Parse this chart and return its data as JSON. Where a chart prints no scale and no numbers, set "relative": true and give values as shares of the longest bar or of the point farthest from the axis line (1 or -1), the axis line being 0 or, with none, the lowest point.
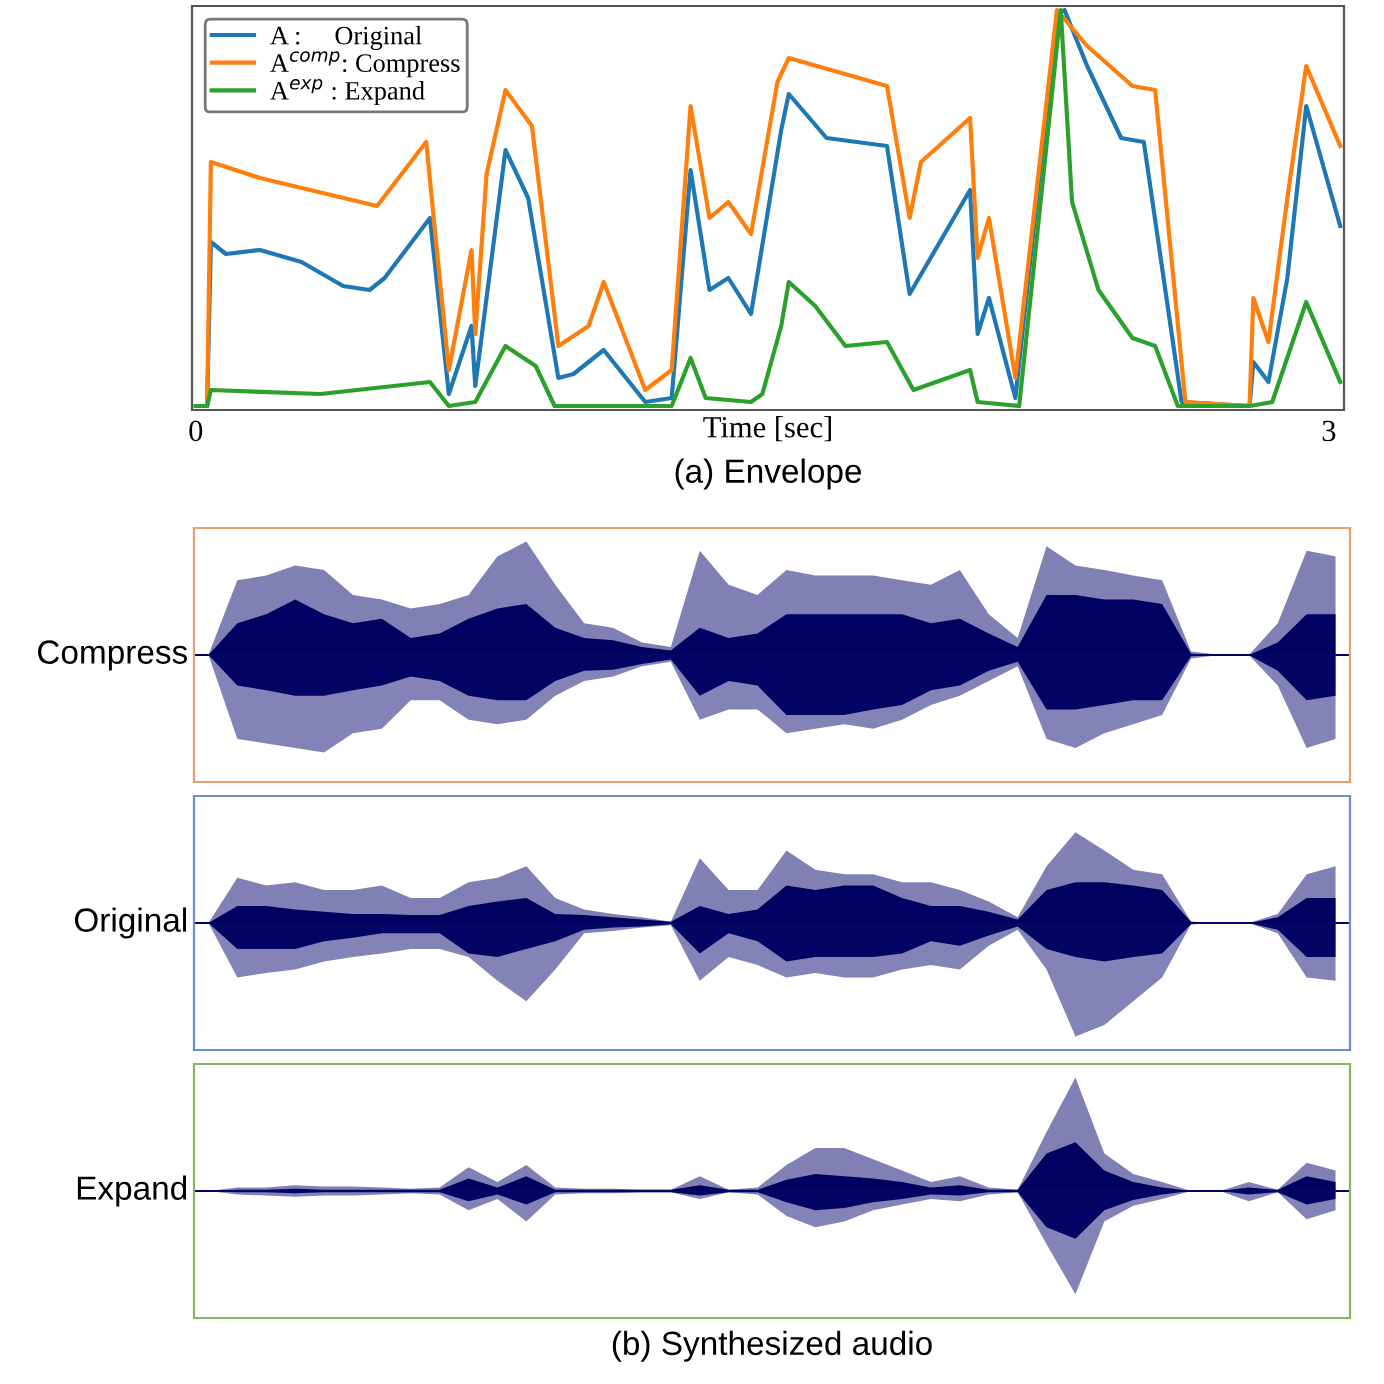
{
  "chart_data": [
    {
      "type": "line",
      "relative": true,
      "xlabel": "Time [sec]",
      "xlim": [
        -0.01,
        3.04
      ],
      "xticks": [
        0,
        3
      ],
      "tick_labels": "x",
      "legend": "top left",
      "grid": false,
      "annotations": [
        "(a) Envelope"
      ],
      "series": [
        {
          "name": "A :     Original",
          "color": "#1f77b4",
          "x": [
            0,
            0.03,
            0.04,
            0.08,
            0.17,
            0.28,
            0.39,
            0.46,
            0.5,
            0.62,
            0.67,
            0.73,
            0.74,
            0.82,
            0.88,
            0.96,
            1.0,
            1.08,
            1.19,
            1.26,
            1.31,
            1.36,
            1.41,
            1.47,
            1.55,
            1.57,
            1.67,
            1.83,
            1.89,
            2.05,
            2.07,
            2.1,
            2.17,
            2.28,
            2.3,
            2.36,
            2.45,
            2.51,
            2.61,
            2.79,
            2.8,
            2.84,
            2.89,
            2.94,
            3.03
          ],
          "values": [
            0.01,
            0.01,
            0.42,
            0.39,
            0.4,
            0.37,
            0.31,
            0.3,
            0.33,
            0.48,
            0.04,
            0.21,
            0.06,
            0.65,
            0.53,
            0.08,
            0.09,
            0.15,
            0.02,
            0.03,
            0.6,
            0.3,
            0.33,
            0.24,
            0.7,
            0.79,
            0.68,
            0.66,
            0.29,
            0.55,
            0.19,
            0.28,
            0.03,
            0.99,
            1.0,
            0.86,
            0.68,
            0.67,
            0.02,
            0.01,
            0.12,
            0.07,
            0.33,
            0.76,
            0.46
          ]
        },
        {
          "name": "A$^{comp}$: Compress",
          "color": "#ff7f0e",
          "x": [
            0,
            0.03,
            0.04,
            0.17,
            0.48,
            0.61,
            0.67,
            0.73,
            0.74,
            0.77,
            0.82,
            0.89,
            0.96,
            1.04,
            1.08,
            1.19,
            1.26,
            1.31,
            1.36,
            1.41,
            1.47,
            1.54,
            1.57,
            1.83,
            1.89,
            1.92,
            2.05,
            2.07,
            2.1,
            2.17,
            2.28,
            2.36,
            2.48,
            2.54,
            2.62,
            2.79,
            2.8,
            2.84,
            2.89,
            2.94,
            3.03
          ],
          "values": [
            0.01,
            0.01,
            0.62,
            0.58,
            0.51,
            0.67,
            0.1,
            0.4,
            0.19,
            0.59,
            0.8,
            0.71,
            0.16,
            0.21,
            0.32,
            0.05,
            0.1,
            0.76,
            0.48,
            0.52,
            0.44,
            0.82,
            0.88,
            0.81,
            0.48,
            0.62,
            0.73,
            0.38,
            0.48,
            0.08,
            1.0,
            0.91,
            0.81,
            0.8,
            0.02,
            0.01,
            0.28,
            0.17,
            0.53,
            0.86,
            0.66
          ]
        },
        {
          "name": "A$^{exp}$ : Expand",
          "color": "#2ca02c",
          "x": [
            0,
            0.03,
            0.04,
            0.33,
            0.62,
            0.67,
            0.74,
            0.82,
            0.9,
            0.95,
            1.26,
            1.31,
            1.35,
            1.47,
            1.5,
            1.55,
            1.57,
            1.64,
            1.72,
            1.83,
            1.9,
            2.05,
            2.07,
            2.18,
            2.29,
            2.32,
            2.39,
            2.48,
            2.54,
            2.6,
            2.79,
            2.85,
            2.94,
            3.03
          ],
          "values": [
            0.01,
            0.01,
            0.05,
            0.04,
            0.07,
            0.01,
            0.02,
            0.16,
            0.11,
            0.01,
            0.01,
            0.13,
            0.03,
            0.02,
            0.04,
            0.21,
            0.32,
            0.26,
            0.16,
            0.17,
            0.05,
            0.1,
            0.02,
            0.01,
            1.0,
            0.52,
            0.3,
            0.18,
            0.16,
            0.01,
            0.01,
            0.02,
            0.27,
            0.07
          ]
        }
      ]
    },
    {
      "type": "area",
      "relative": true,
      "ylabel": "Compress",
      "tick_labels": false,
      "ref_lines": [
        {
          "axis": "y",
          "value": 0,
          "color": "#040464"
        }
      ],
      "categories": [
        null,
        null,
        null,
        null,
        null,
        null,
        null,
        null,
        null,
        null,
        null,
        null,
        null,
        null,
        null,
        null,
        null,
        null,
        null,
        null,
        null,
        null,
        null,
        null,
        null,
        null,
        null,
        null,
        null,
        null,
        null,
        null,
        null,
        null,
        null,
        null,
        null,
        null,
        null,
        null
      ],
      "series": [
        {
          "color": "#8080b4",
          "values": [
            0,
            0.66,
            0.7,
            0.79,
            0.75,
            0.53,
            0.49,
            0.41,
            0.45,
            0.53,
            0.87,
            1.0,
            0.62,
            0.28,
            0.24,
            0.11,
            0.07,
            0.92,
            0.62,
            0.53,
            0.75,
            0.7,
            0.7,
            0.7,
            0.66,
            0.62,
            0.75,
            0.36,
            0.15,
            0.96,
            0.79,
            0.75,
            0.7,
            0.66,
            0.03,
            0,
            0,
            0.28,
            0.92,
            0.87
          ]
        },
        {
          "color": "#8383b7",
          "values": [
            0,
            -0.74,
            -0.78,
            -0.82,
            -0.86,
            -0.69,
            -0.65,
            -0.4,
            -0.4,
            -0.57,
            -0.61,
            -0.57,
            -0.36,
            -0.23,
            -0.19,
            -0.1,
            -0.06,
            -0.57,
            -0.48,
            -0.48,
            -0.69,
            -0.65,
            -0.61,
            -0.65,
            -0.57,
            -0.44,
            -0.36,
            -0.23,
            -0.1,
            -0.74,
            -0.82,
            -0.69,
            -0.61,
            -0.53,
            -0.03,
            0,
            0,
            -0.27,
            -0.82,
            -0.74
          ]
        },
        {
          "color": "#000060",
          "values": [
            0,
            0.28,
            0.36,
            0.49,
            0.36,
            0.28,
            0.32,
            0.15,
            0.19,
            0.32,
            0.41,
            0.45,
            0.24,
            0.15,
            0.13,
            0.07,
            0.04,
            0.24,
            0.15,
            0.19,
            0.36,
            0.36,
            0.36,
            0.36,
            0.36,
            0.28,
            0.32,
            0.19,
            0.07,
            0.53,
            0.53,
            0.49,
            0.49,
            0.45,
            0.01,
            0,
            0,
            0.11,
            0.36,
            0.36
          ]
        },
        {
          "color": "#040464",
          "values": [
            0,
            -0.27,
            -0.31,
            -0.36,
            -0.36,
            -0.31,
            -0.27,
            -0.19,
            -0.23,
            -0.36,
            -0.4,
            -0.4,
            -0.23,
            -0.14,
            -0.13,
            -0.08,
            -0.04,
            -0.36,
            -0.23,
            -0.27,
            -0.53,
            -0.53,
            -0.53,
            -0.48,
            -0.44,
            -0.31,
            -0.27,
            -0.14,
            -0.06,
            -0.48,
            -0.48,
            -0.44,
            -0.4,
            -0.4,
            -0.01,
            0,
            0,
            -0.14,
            -0.4,
            -0.36
          ]
        }
      ]
    },
    {
      "type": "area",
      "relative": true,
      "ylabel": "Original",
      "tick_labels": false,
      "ref_lines": [
        {
          "axis": "y",
          "value": 0,
          "color": "#040464"
        }
      ],
      "categories": [
        null,
        null,
        null,
        null,
        null,
        null,
        null,
        null,
        null,
        null,
        null,
        null,
        null,
        null,
        null,
        null,
        null,
        null,
        null,
        null,
        null,
        null,
        null,
        null,
        null,
        null,
        null,
        null,
        null,
        null,
        null,
        null,
        null,
        null,
        null,
        null,
        null,
        null,
        null,
        null
      ],
      "series": [
        {
          "color": "#8080b4",
          "values": [
            0,
            0.4,
            0.33,
            0.36,
            0.29,
            0.29,
            0.33,
            0.22,
            0.22,
            0.36,
            0.4,
            0.5,
            0.22,
            0.12,
            0.08,
            0.05,
            0.01,
            0.57,
            0.29,
            0.29,
            0.64,
            0.47,
            0.43,
            0.43,
            0.36,
            0.36,
            0.29,
            0.19,
            0.05,
            0.5,
            0.8,
            0.64,
            0.47,
            0.43,
            0.01,
            0,
            0,
            0.08,
            0.43,
            0.5
          ]
        },
        {
          "color": "#8383b7",
          "values": [
            0,
            -0.48,
            -0.44,
            -0.41,
            -0.34,
            -0.3,
            -0.27,
            -0.23,
            -0.23,
            -0.3,
            -0.51,
            -0.69,
            -0.41,
            -0.09,
            -0.07,
            -0.04,
            -0.02,
            -0.51,
            -0.3,
            -0.37,
            -0.48,
            -0.44,
            -0.48,
            -0.48,
            -0.41,
            -0.37,
            -0.41,
            -0.2,
            -0.06,
            -0.41,
            -1.0,
            -0.9,
            -0.69,
            -0.48,
            -0.01,
            0,
            0,
            -0.09,
            -0.48,
            -0.51
          ]
        },
        {
          "color": "#000060",
          "values": [
            0,
            0.15,
            0.15,
            0.12,
            0.1,
            0.08,
            0.08,
            0.07,
            0.07,
            0.15,
            0.19,
            0.22,
            0.08,
            0.07,
            0.05,
            0.03,
            0.01,
            0.15,
            0.08,
            0.12,
            0.33,
            0.29,
            0.33,
            0.33,
            0.22,
            0.15,
            0.15,
            0.1,
            0.03,
            0.29,
            0.36,
            0.36,
            0.33,
            0.29,
            0.01,
            0,
            0,
            0.05,
            0.22,
            0.22
          ]
        },
        {
          "color": "#040464",
          "values": [
            0,
            -0.23,
            -0.23,
            -0.23,
            -0.16,
            -0.13,
            -0.09,
            -0.09,
            -0.09,
            -0.27,
            -0.3,
            -0.23,
            -0.16,
            -0.06,
            -0.04,
            -0.03,
            -0.01,
            -0.27,
            -0.09,
            -0.16,
            -0.34,
            -0.3,
            -0.3,
            -0.3,
            -0.27,
            -0.16,
            -0.2,
            -0.11,
            -0.03,
            -0.23,
            -0.3,
            -0.34,
            -0.3,
            -0.27,
            -0.01,
            0,
            0,
            -0.06,
            -0.3,
            -0.3
          ]
        }
      ]
    },
    {
      "type": "area",
      "relative": true,
      "ylabel": "Expand",
      "tick_labels": false,
      "ref_lines": [
        {
          "axis": "y",
          "value": 0,
          "color": "#040464"
        }
      ],
      "annotations": [
        "(b) Synthesized audio"
      ],
      "categories": [
        null,
        null,
        null,
        null,
        null,
        null,
        null,
        null,
        null,
        null,
        null,
        null,
        null,
        null,
        null,
        null,
        null,
        null,
        null,
        null,
        null,
        null,
        null,
        null,
        null,
        null,
        null,
        null,
        null,
        null,
        null,
        null,
        null,
        null,
        null,
        null,
        null,
        null,
        null,
        null
      ],
      "series": [
        {
          "color": "#8080b4",
          "values": [
            0,
            0.03,
            0.03,
            0.05,
            0.04,
            0.04,
            0.03,
            0.02,
            0.03,
            0.21,
            0.08,
            0.23,
            0.03,
            0.02,
            0.02,
            0.01,
            0.01,
            0.13,
            0.01,
            0.03,
            0.23,
            0.38,
            0.38,
            0.28,
            0.18,
            0.08,
            0.13,
            0.03,
            0.01,
            0.52,
            1.0,
            0.33,
            0.15,
            0.08,
            0,
            0,
            0.08,
            0.01,
            0.25,
            0.18
          ]
        },
        {
          "color": "#8383b7",
          "values": [
            0,
            -0.03,
            -0.04,
            -0.05,
            -0.04,
            -0.04,
            -0.03,
            -0.02,
            -0.03,
            -0.17,
            -0.07,
            -0.27,
            -0.03,
            -0.02,
            -0.02,
            -0.01,
            -0.01,
            -0.07,
            -0.01,
            -0.03,
            -0.22,
            -0.32,
            -0.27,
            -0.17,
            -0.12,
            -0.07,
            -0.09,
            -0.03,
            -0.01,
            -0.47,
            -0.91,
            -0.27,
            -0.13,
            -0.07,
            0,
            0,
            -0.09,
            -0.01,
            -0.25,
            -0.17
          ]
        },
        {
          "color": "#000060",
          "values": [
            0,
            0.01,
            0.01,
            0.02,
            0.01,
            0.01,
            0.01,
            0.01,
            0.01,
            0.11,
            0.03,
            0.13,
            0.01,
            0.01,
            0.01,
            0.01,
            0.01,
            0.05,
            0.01,
            0.01,
            0.1,
            0.15,
            0.13,
            0.11,
            0.08,
            0.03,
            0.05,
            0.01,
            0.01,
            0.33,
            0.43,
            0.18,
            0.08,
            0.03,
            0,
            0,
            0.03,
            0.01,
            0.13,
            0.08
          ]
        },
        {
          "color": "#040464",
          "values": [
            0,
            -0.01,
            -0.01,
            -0.02,
            -0.01,
            -0.01,
            -0.01,
            -0.01,
            -0.01,
            -0.09,
            -0.03,
            -0.12,
            -0.01,
            -0.01,
            -0.01,
            -0.01,
            -0.01,
            -0.04,
            -0.01,
            -0.01,
            -0.1,
            -0.17,
            -0.15,
            -0.1,
            -0.07,
            -0.03,
            -0.04,
            -0.01,
            -0.01,
            -0.32,
            -0.42,
            -0.17,
            -0.08,
            -0.03,
            0,
            0,
            -0.03,
            -0.01,
            -0.12,
            -0.07
          ]
        }
      ]
    }
  ]
}
